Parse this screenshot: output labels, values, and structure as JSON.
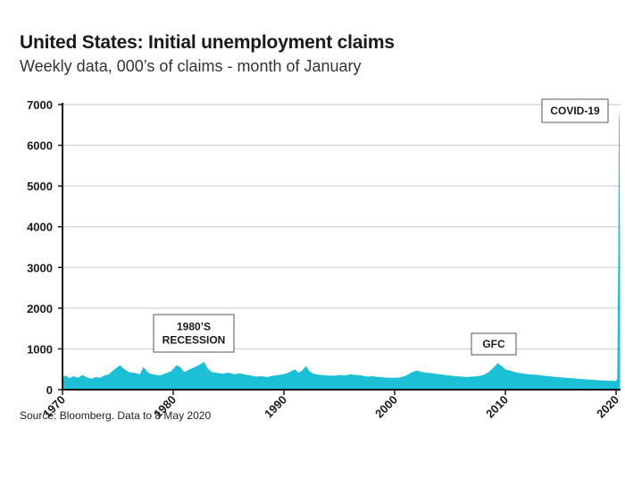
{
  "title": "United States: Initial unemployment claims",
  "subtitle": "Weekly data, 000’s of claims - month of January",
  "source": "Source: Bloomberg. Data to 8 May 2020",
  "colors": {
    "area": "#1bbfd6",
    "grid": "#c8c8c8",
    "axis": "#1a1a1a",
    "box_border": "#555555"
  },
  "chart_data": {
    "type": "area",
    "title": "United States: Initial unemployment claims",
    "subtitle": "Weekly data, 000’s of claims - month of January",
    "xlabel": "",
    "ylabel": "",
    "xlim": [
      1970,
      2020.4
    ],
    "ylim": [
      0,
      7000
    ],
    "yticks": [
      0,
      1000,
      2000,
      3000,
      4000,
      5000,
      6000,
      7000
    ],
    "ytick_labels": [
      "0",
      "1000",
      "2000",
      "3000",
      "4000",
      "5000",
      "6000",
      "7000"
    ],
    "xticks": [
      1970,
      1980,
      1990,
      2000,
      2010,
      2020
    ],
    "xtick_labels": [
      "1970",
      "1980",
      "1990",
      "2000",
      "2010",
      "2020"
    ],
    "grid": true,
    "series": [
      {
        "x": [
          1970.0,
          1970.3,
          1970.6,
          1971.0,
          1971.4,
          1971.8,
          1972.2,
          1972.6,
          1973.0,
          1973.4,
          1973.8,
          1974.2,
          1974.6,
          1975.0,
          1975.2,
          1975.6,
          1976.0,
          1976.5,
          1977.0,
          1977.3,
          1977.8,
          1978.3,
          1978.8,
          1979.3,
          1979.8,
          1980.3,
          1980.6,
          1981.0,
          1981.5,
          1982.0,
          1982.4,
          1982.8,
          1983.1,
          1983.5,
          1984.0,
          1984.5,
          1985.0,
          1985.5,
          1986.0,
          1986.5,
          1987.0,
          1987.5,
          1988.0,
          1988.5,
          1989.0,
          1989.5,
          1990.0,
          1990.5,
          1991.0,
          1991.3,
          1991.6,
          1992.0,
          1992.3,
          1992.6,
          1993.0,
          1993.5,
          1994.0,
          1994.5,
          1995.0,
          1995.5,
          1996.0,
          1996.5,
          1997.0,
          1997.5,
          1998.0,
          1998.5,
          1999.0,
          1999.5,
          2000.0,
          2000.5,
          2001.0,
          2001.5,
          2002.0,
          2002.5,
          2003.0,
          2003.5,
          2004.0,
          2004.5,
          2005.0,
          2005.5,
          2006.0,
          2006.5,
          2007.0,
          2007.5,
          2008.0,
          2008.5,
          2009.0,
          2009.3,
          2009.7,
          2010.0,
          2010.5,
          2011.0,
          2011.5,
          2012.0,
          2012.5,
          2013.0,
          2013.5,
          2014.0,
          2014.5,
          2015.0,
          2015.5,
          2016.0,
          2016.5,
          2017.0,
          2017.5,
          2018.0,
          2018.5,
          2019.0,
          2019.5,
          2020.0,
          2020.1,
          2020.2,
          2020.25,
          2020.3,
          2020.36
        ],
        "values": [
          300,
          350,
          280,
          330,
          290,
          360,
          300,
          270,
          310,
          290,
          350,
          380,
          480,
          560,
          600,
          500,
          430,
          410,
          380,
          560,
          400,
          370,
          350,
          400,
          450,
          600,
          560,
          430,
          500,
          560,
          620,
          680,
          520,
          430,
          410,
          390,
          420,
          380,
          400,
          370,
          350,
          320,
          330,
          310,
          340,
          360,
          380,
          430,
          500,
          420,
          460,
          580,
          450,
          400,
          370,
          360,
          350,
          340,
          360,
          350,
          380,
          360,
          350,
          320,
          330,
          310,
          300,
          290,
          290,
          300,
          340,
          420,
          470,
          430,
          410,
          400,
          380,
          360,
          350,
          330,
          320,
          310,
          320,
          330,
          360,
          430,
          560,
          650,
          570,
          500,
          460,
          420,
          400,
          380,
          370,
          360,
          340,
          330,
          310,
          300,
          290,
          280,
          270,
          260,
          250,
          240,
          230,
          225,
          220,
          215,
          280,
          3300,
          6867,
          6600,
          3200
        ]
      }
    ],
    "annotations": [
      {
        "lines": [
          "1980’S",
          "RECESSION"
        ]
      },
      {
        "lines": [
          "GFC"
        ]
      },
      {
        "lines": [
          "COVID-19"
        ]
      }
    ]
  }
}
